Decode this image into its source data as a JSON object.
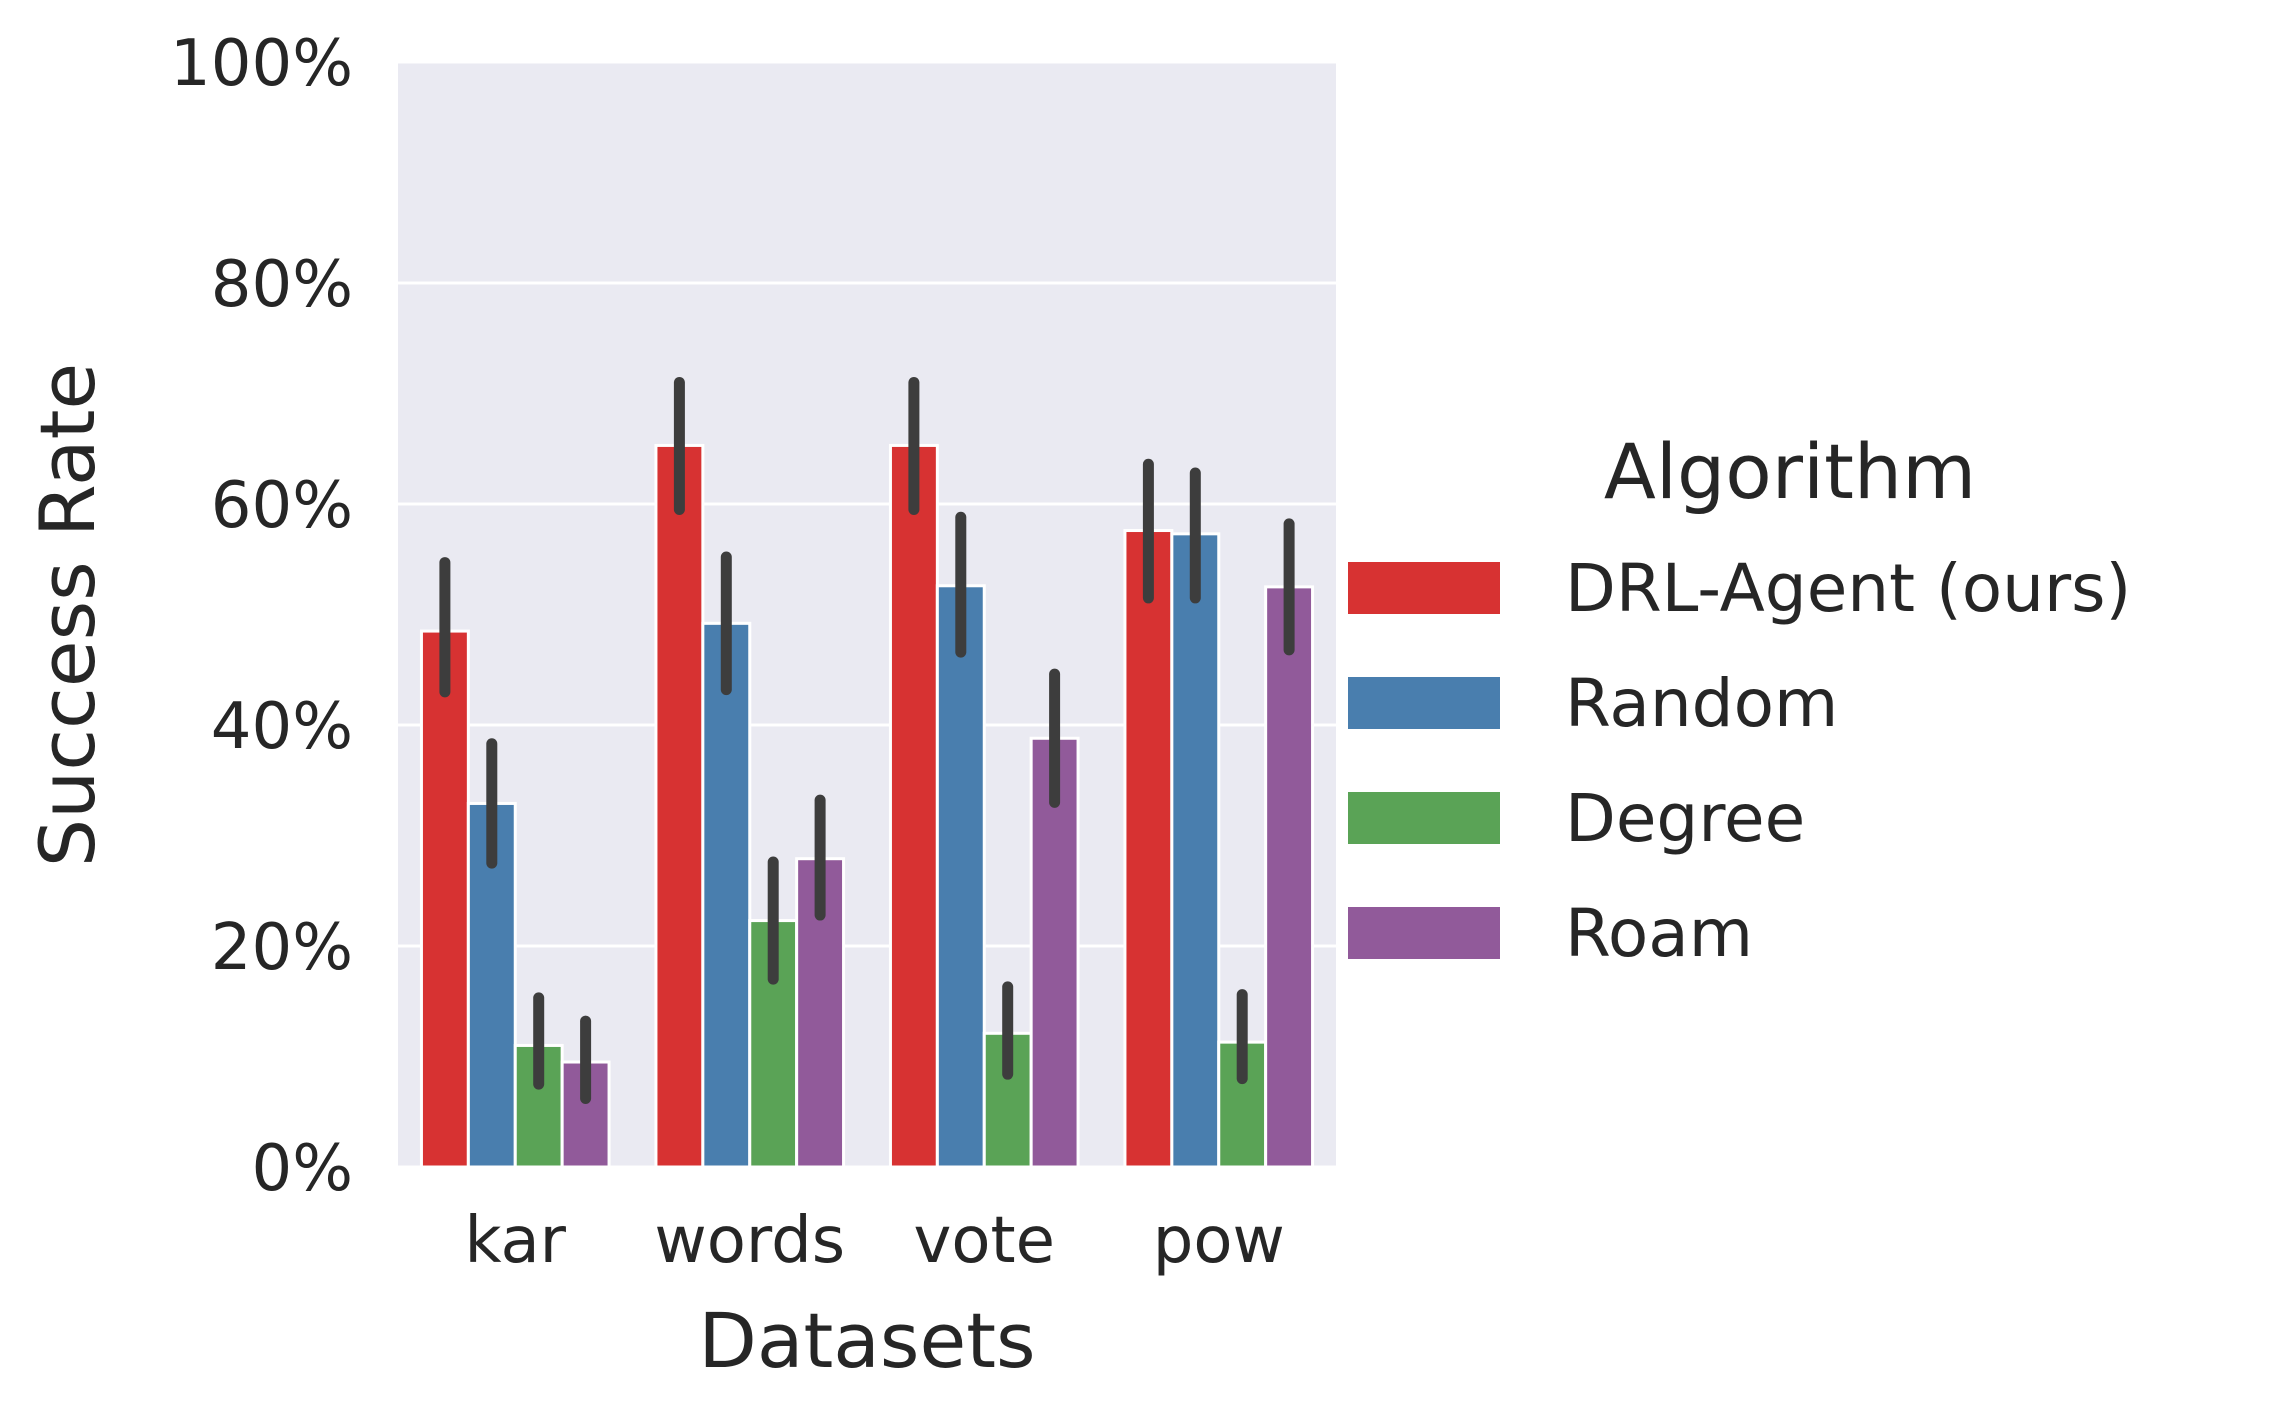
{
  "chart_data": {
    "type": "bar",
    "categories": [
      "kar",
      "words",
      "vote",
      "pow"
    ],
    "xlabel": "Datasets",
    "ylabel": "Success Rate",
    "ylim": [
      0,
      100
    ],
    "yticks": [
      "0%",
      "20%",
      "40%",
      "60%",
      "80%",
      "100%"
    ],
    "ytick_values": [
      0,
      20,
      40,
      60,
      80,
      100
    ],
    "grid": true,
    "legend": {
      "title": "Algorithm",
      "placement": "right"
    },
    "series": [
      {
        "name": "DRL-Agent (ours)",
        "color": "#d73232",
        "values": [
          48.5,
          65.3,
          65.3,
          57.6
        ],
        "err_low": [
          43.0,
          59.5,
          59.5,
          51.5
        ],
        "err_high": [
          54.7,
          71.0,
          71.0,
          63.6
        ]
      },
      {
        "name": "Random",
        "color": "#497eae",
        "values": [
          32.9,
          49.2,
          52.6,
          57.3
        ],
        "err_low": [
          27.5,
          43.2,
          46.6,
          51.5
        ],
        "err_high": [
          38.3,
          55.2,
          58.8,
          62.8
        ]
      },
      {
        "name": "Degree",
        "color": "#5aa356",
        "values": [
          11.0,
          22.3,
          12.1,
          11.3
        ],
        "err_low": [
          7.5,
          17.0,
          8.4,
          8.0
        ],
        "err_high": [
          15.3,
          27.6,
          16.3,
          15.6
        ]
      },
      {
        "name": "Roam",
        "color": "#915a9a",
        "values": [
          9.5,
          27.9,
          38.8,
          52.5
        ],
        "err_low": [
          6.2,
          22.8,
          33.0,
          46.8
        ],
        "err_high": [
          13.2,
          33.2,
          44.6,
          58.2
        ]
      }
    ]
  }
}
